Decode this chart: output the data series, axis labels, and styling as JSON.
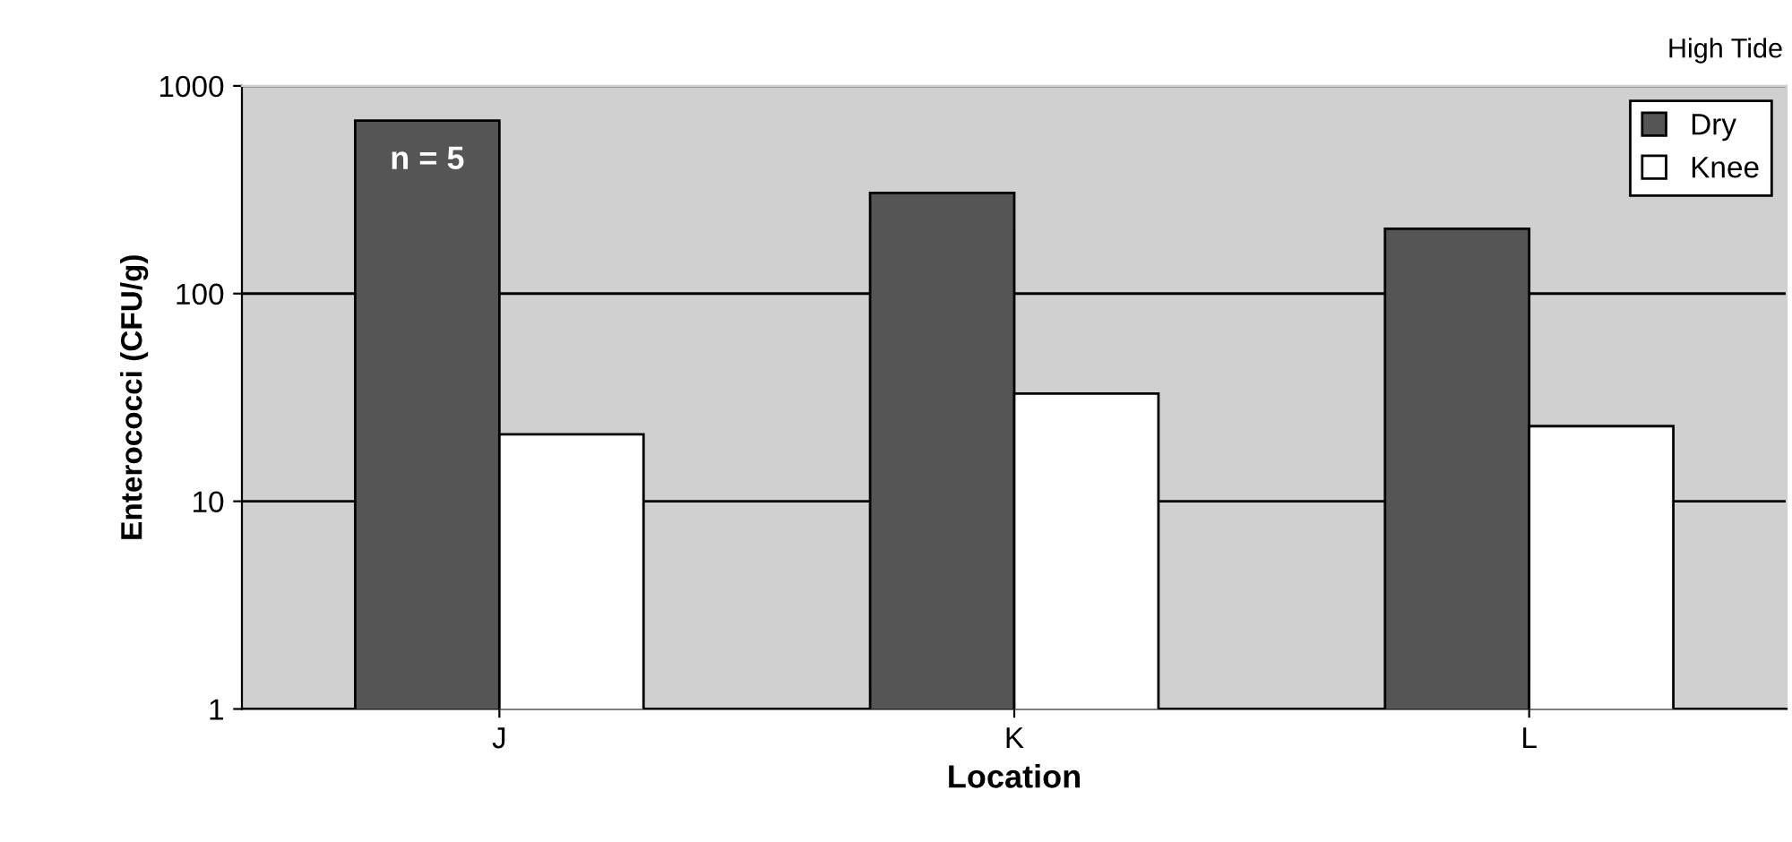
{
  "chart_data": {
    "type": "bar",
    "xlabel": "Location",
    "ylabel": "Enterococci (CFU/g)",
    "categories": [
      "J",
      "K",
      "L"
    ],
    "series": [
      {
        "name": "Dry",
        "color": "#555555",
        "values": [
          680,
          305,
          205
        ]
      },
      {
        "name": "Knee",
        "color": "#ffffff",
        "values": [
          21,
          33,
          23
        ]
      }
    ],
    "log": true,
    "ylim": [
      1,
      1000
    ],
    "yticks": [
      1,
      10,
      100,
      1000
    ],
    "grid": "y",
    "legend": "top right",
    "annotations": [
      "High Tide",
      "n = 5"
    ]
  }
}
